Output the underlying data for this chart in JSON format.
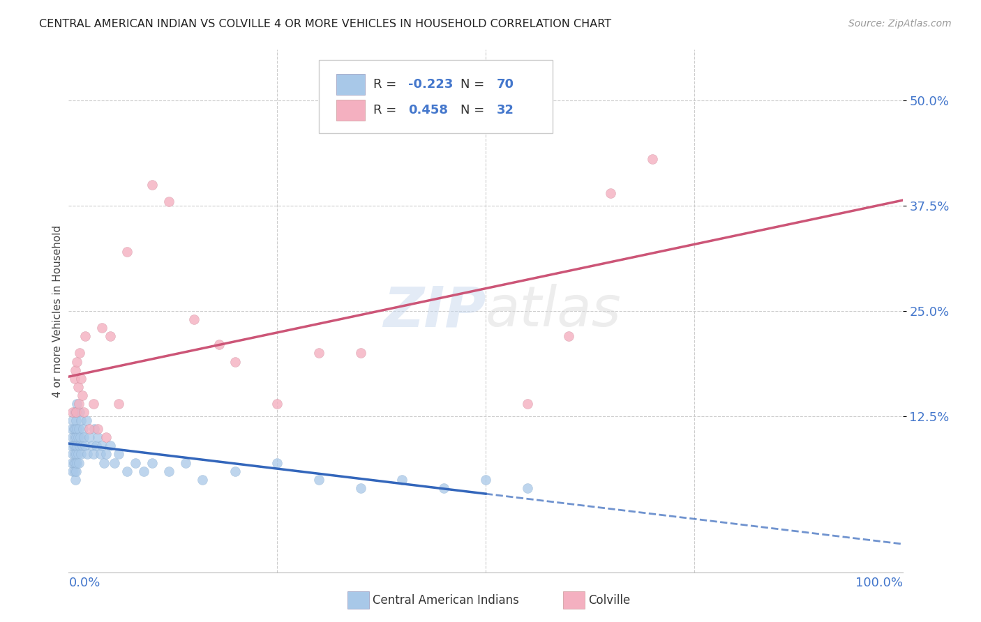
{
  "title": "CENTRAL AMERICAN INDIAN VS COLVILLE 4 OR MORE VEHICLES IN HOUSEHOLD CORRELATION CHART",
  "source": "Source: ZipAtlas.com",
  "ylabel": "4 or more Vehicles in Household",
  "watermark_zip": "ZIP",
  "watermark_atlas": "atlas",
  "legend_blue_r": "-0.223",
  "legend_blue_n": "70",
  "legend_pink_r": "0.458",
  "legend_pink_n": "32",
  "legend_blue_label": "Central American Indians",
  "legend_pink_label": "Colville",
  "blue_color": "#a8c8e8",
  "pink_color": "#f4b0c0",
  "blue_line_color": "#3366bb",
  "pink_line_color": "#cc5577",
  "ytick_labels": [
    "12.5%",
    "25.0%",
    "37.5%",
    "50.0%"
  ],
  "ytick_values": [
    0.125,
    0.25,
    0.375,
    0.5
  ],
  "xlim": [
    0.0,
    1.0
  ],
  "ylim": [
    -0.06,
    0.56
  ],
  "blue_scatter_x": [
    0.003,
    0.004,
    0.004,
    0.005,
    0.005,
    0.005,
    0.005,
    0.006,
    0.006,
    0.006,
    0.007,
    0.007,
    0.007,
    0.007,
    0.008,
    0.008,
    0.008,
    0.008,
    0.008,
    0.009,
    0.009,
    0.009,
    0.009,
    0.01,
    0.01,
    0.01,
    0.01,
    0.011,
    0.011,
    0.012,
    0.012,
    0.013,
    0.013,
    0.014,
    0.015,
    0.015,
    0.016,
    0.017,
    0.018,
    0.02,
    0.021,
    0.022,
    0.025,
    0.028,
    0.03,
    0.031,
    0.033,
    0.035,
    0.038,
    0.04,
    0.042,
    0.045,
    0.05,
    0.055,
    0.06,
    0.07,
    0.08,
    0.09,
    0.1,
    0.12,
    0.14,
    0.16,
    0.2,
    0.25,
    0.3,
    0.35,
    0.4,
    0.45,
    0.5,
    0.55
  ],
  "blue_scatter_y": [
    0.09,
    0.07,
    0.11,
    0.06,
    0.08,
    0.1,
    0.12,
    0.07,
    0.09,
    0.11,
    0.06,
    0.08,
    0.1,
    0.13,
    0.05,
    0.07,
    0.09,
    0.11,
    0.13,
    0.06,
    0.08,
    0.1,
    0.12,
    0.07,
    0.09,
    0.11,
    0.14,
    0.08,
    0.1,
    0.07,
    0.11,
    0.09,
    0.13,
    0.1,
    0.08,
    0.12,
    0.09,
    0.11,
    0.1,
    0.09,
    0.12,
    0.08,
    0.1,
    0.09,
    0.08,
    0.11,
    0.09,
    0.1,
    0.08,
    0.09,
    0.07,
    0.08,
    0.09,
    0.07,
    0.08,
    0.06,
    0.07,
    0.06,
    0.07,
    0.06,
    0.07,
    0.05,
    0.06,
    0.07,
    0.05,
    0.04,
    0.05,
    0.04,
    0.05,
    0.04
  ],
  "pink_scatter_x": [
    0.005,
    0.007,
    0.008,
    0.009,
    0.01,
    0.011,
    0.012,
    0.013,
    0.015,
    0.016,
    0.018,
    0.02,
    0.025,
    0.03,
    0.035,
    0.04,
    0.045,
    0.05,
    0.06,
    0.07,
    0.1,
    0.12,
    0.15,
    0.18,
    0.2,
    0.25,
    0.3,
    0.35,
    0.55,
    0.6,
    0.65,
    0.7
  ],
  "pink_scatter_y": [
    0.13,
    0.17,
    0.18,
    0.13,
    0.19,
    0.16,
    0.14,
    0.2,
    0.17,
    0.15,
    0.13,
    0.22,
    0.11,
    0.14,
    0.11,
    0.23,
    0.1,
    0.22,
    0.14,
    0.32,
    0.4,
    0.38,
    0.24,
    0.21,
    0.19,
    0.14,
    0.2,
    0.2,
    0.14,
    0.22,
    0.39,
    0.43
  ],
  "background_color": "#ffffff",
  "grid_color": "#cccccc"
}
